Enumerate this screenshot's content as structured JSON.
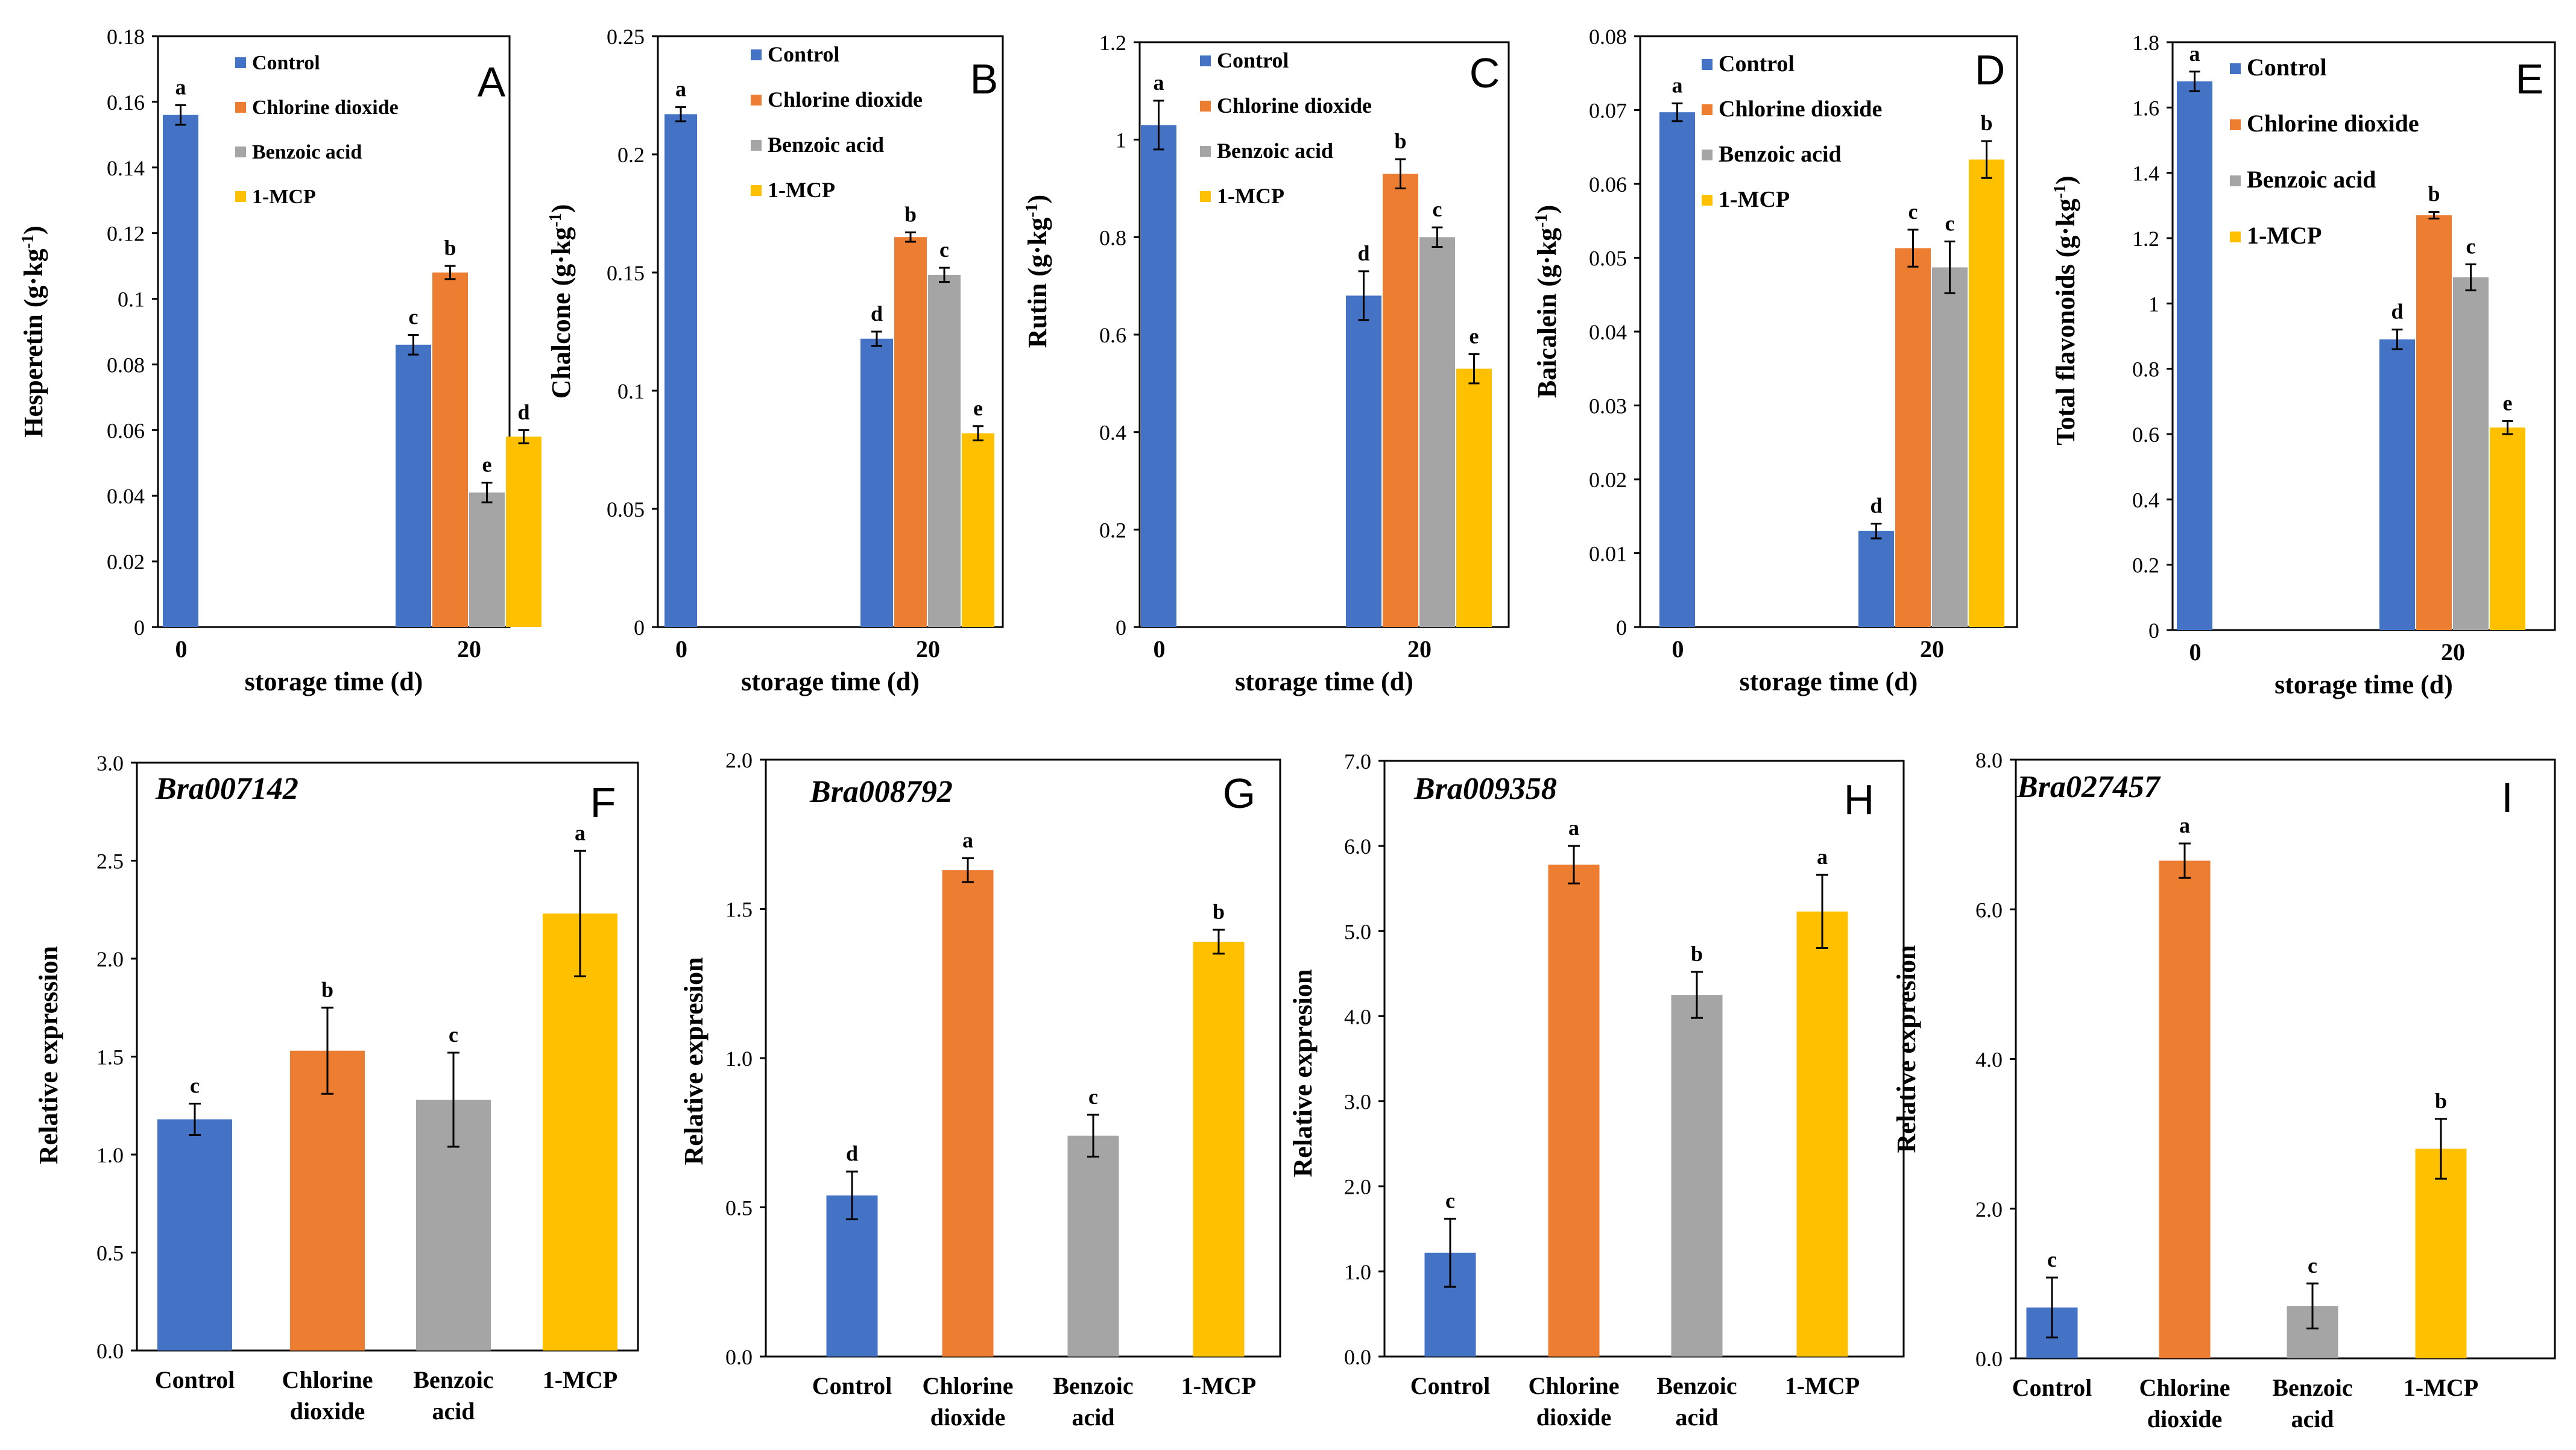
{
  "colors": {
    "Control": "#4472c4",
    "Chlorine dioxide": "#ed7d31",
    "Benzoic acid": "#a5a5a5",
    "1-MCP": "#ffc000"
  },
  "shared": {
    "x_label": "storage time (d)",
    "y_label_expression": "Relative expresion",
    "treatments": [
      "Control",
      "Chlorine dioxide",
      "Benzoic acid",
      "1-MCP"
    ],
    "category_lines": [
      [
        "Control"
      ],
      [
        "Chlorine",
        "dioxide"
      ],
      [
        "Benzoic",
        "acid"
      ],
      [
        "1-MCP"
      ]
    ]
  },
  "chart_data": [
    {
      "type": "bar",
      "panel": "A",
      "ylabel": "Hesperetin",
      "yunit": "(g·kg-1)",
      "categories": [
        "0",
        "20"
      ],
      "ylim": [
        0,
        0.18
      ],
      "yticks": [
        "0",
        "0.02",
        "0.04",
        "0.06",
        "0.08",
        "0.1",
        "0.12",
        "0.14",
        "0.16",
        "0.18"
      ],
      "legend": [
        "Control",
        "Chlorine dioxide",
        "Benzoic acid",
        "1-MCP"
      ],
      "bars": [
        {
          "category": "0",
          "series": "Control",
          "value": 0.156,
          "error": 0.003,
          "label": "a"
        },
        {
          "category": "20",
          "series": "Control",
          "value": 0.086,
          "error": 0.003,
          "label": "c"
        },
        {
          "category": "20",
          "series": "Chlorine dioxide",
          "value": 0.108,
          "error": 0.002,
          "label": "b"
        },
        {
          "category": "20",
          "series": "Benzoic acid",
          "value": 0.041,
          "error": 0.003,
          "label": "e"
        },
        {
          "category": "20",
          "series": "1-MCP",
          "value": 0.058,
          "error": 0.002,
          "label": "d"
        }
      ]
    },
    {
      "type": "bar",
      "panel": "B",
      "ylabel": "Chalcone",
      "yunit": "(g·kg-1)",
      "categories": [
        "0",
        "20"
      ],
      "ylim": [
        0,
        0.25
      ],
      "yticks": [
        "0",
        "0.05",
        "0.1",
        "0.15",
        "0.2",
        "0.25"
      ],
      "legend": [
        "Control",
        "Chlorine dioxide",
        "Benzoic acid",
        "1-MCP"
      ],
      "bars": [
        {
          "category": "0",
          "series": "Control",
          "value": 0.217,
          "error": 0.003,
          "label": "a"
        },
        {
          "category": "20",
          "series": "Control",
          "value": 0.122,
          "error": 0.003,
          "label": "d"
        },
        {
          "category": "20",
          "series": "Chlorine dioxide",
          "value": 0.165,
          "error": 0.002,
          "label": "b"
        },
        {
          "category": "20",
          "series": "Benzoic acid",
          "value": 0.149,
          "error": 0.003,
          "label": "c"
        },
        {
          "category": "20",
          "series": "1-MCP",
          "value": 0.082,
          "error": 0.003,
          "label": "e"
        }
      ]
    },
    {
      "type": "bar",
      "panel": "C",
      "ylabel": "Rutin",
      "yunit": "(g·kg-1)",
      "categories": [
        "0",
        "20"
      ],
      "ylim": [
        0,
        1.2
      ],
      "yticks": [
        "0",
        "0.2",
        "0.4",
        "0.6",
        "0.8",
        "1",
        "1.2"
      ],
      "legend": [
        "Control",
        "Chlorine dioxide",
        "Benzoic acid",
        "1-MCP"
      ],
      "bars": [
        {
          "category": "0",
          "series": "Control",
          "value": 1.03,
          "error": 0.05,
          "label": "a"
        },
        {
          "category": "20",
          "series": "Control",
          "value": 0.68,
          "error": 0.05,
          "label": "d"
        },
        {
          "category": "20",
          "series": "Chlorine dioxide",
          "value": 0.93,
          "error": 0.03,
          "label": "b"
        },
        {
          "category": "20",
          "series": "Benzoic acid",
          "value": 0.8,
          "error": 0.02,
          "label": "c"
        },
        {
          "category": "20",
          "series": "1-MCP",
          "value": 0.53,
          "error": 0.03,
          "label": "e"
        }
      ]
    },
    {
      "type": "bar",
      "panel": "D",
      "ylabel": "Baicalein",
      "yunit": "(g·kg-1)",
      "categories": [
        "0",
        "20"
      ],
      "ylim": [
        0,
        0.08
      ],
      "yticks": [
        "0",
        "0.01",
        "0.02",
        "0.03",
        "0.04",
        "0.05",
        "0.06",
        "0.07",
        "0.08"
      ],
      "legend": [
        "Control",
        "Chlorine dioxide",
        "Benzoic acid",
        "1-MCP"
      ],
      "bars": [
        {
          "category": "0",
          "series": "Control",
          "value": 0.0697,
          "error": 0.0012,
          "label": "a"
        },
        {
          "category": "20",
          "series": "Control",
          "value": 0.013,
          "error": 0.001,
          "label": "d"
        },
        {
          "category": "20",
          "series": "Chlorine dioxide",
          "value": 0.0513,
          "error": 0.0025,
          "label": "c"
        },
        {
          "category": "20",
          "series": "Benzoic acid",
          "value": 0.0487,
          "error": 0.0035,
          "label": "c"
        },
        {
          "category": "20",
          "series": "1-MCP",
          "value": 0.0633,
          "error": 0.0025,
          "label": "b"
        }
      ]
    },
    {
      "type": "bar",
      "panel": "E",
      "ylabel": "Total flavonoids",
      "yunit": "(g·kg-1)",
      "categories": [
        "0",
        "20"
      ],
      "ylim": [
        0,
        1.8
      ],
      "yticks": [
        "0",
        "0.2",
        "0.4",
        "0.6",
        "0.8",
        "1",
        "1.2",
        "1.4",
        "1.6",
        "1.8"
      ],
      "legend": [
        "Control",
        "Chlorine dioxide",
        "Benzoic acid",
        "1-MCP"
      ],
      "bars": [
        {
          "category": "0",
          "series": "Control",
          "value": 1.68,
          "error": 0.03,
          "label": "a"
        },
        {
          "category": "20",
          "series": "Control",
          "value": 0.89,
          "error": 0.03,
          "label": "d"
        },
        {
          "category": "20",
          "series": "Chlorine dioxide",
          "value": 1.27,
          "error": 0.01,
          "label": "b"
        },
        {
          "category": "20",
          "series": "Benzoic acid",
          "value": 1.08,
          "error": 0.04,
          "label": "c"
        },
        {
          "category": "20",
          "series": "1-MCP",
          "value": 0.62,
          "error": 0.02,
          "label": "e"
        }
      ]
    },
    {
      "type": "bar",
      "panel": "F",
      "gene": "Bra007142",
      "ylabel": "Relative expression",
      "ylim": [
        0,
        3.0
      ],
      "yticks": [
        "0.0",
        "0.5",
        "1.0",
        "1.5",
        "2.0",
        "2.5",
        "3.0"
      ],
      "values": [
        1.18,
        1.53,
        1.28,
        2.23
      ],
      "errors": [
        0.08,
        0.22,
        0.24,
        0.32
      ],
      "labels": [
        "c",
        "b",
        "c",
        "a"
      ]
    },
    {
      "type": "bar",
      "panel": "G",
      "gene": "Bra008792",
      "ylabel": "Relative expresion",
      "ylim": [
        0,
        2.0
      ],
      "yticks": [
        "0.0",
        "0.5",
        "1.0",
        "1.5",
        "2.0"
      ],
      "values": [
        0.54,
        1.63,
        0.74,
        1.39
      ],
      "errors": [
        0.08,
        0.04,
        0.07,
        0.04
      ],
      "labels": [
        "d",
        "a",
        "c",
        "b"
      ]
    },
    {
      "type": "bar",
      "panel": "H",
      "gene": "Bra009358",
      "ylabel": "Relative expresion",
      "ylim": [
        0,
        7.0
      ],
      "yticks": [
        "0.0",
        "1.0",
        "2.0",
        "3.0",
        "4.0",
        "5.0",
        "6.0",
        "7.0"
      ],
      "values": [
        1.22,
        5.78,
        4.25,
        5.23
      ],
      "errors": [
        0.4,
        0.22,
        0.27,
        0.43
      ],
      "labels": [
        "c",
        "a",
        "b",
        "a"
      ]
    },
    {
      "type": "bar",
      "panel": "I",
      "gene": "Bra027457",
      "ylabel": "Relative expresion",
      "ylim": [
        0,
        8.0
      ],
      "yticks": [
        "0.0",
        "2.0",
        "4.0",
        "6.0",
        "8.0"
      ],
      "values": [
        0.68,
        6.65,
        0.7,
        2.8
      ],
      "errors": [
        0.4,
        0.23,
        0.3,
        0.4
      ],
      "labels": [
        "c",
        "a",
        "c",
        "b"
      ]
    }
  ]
}
